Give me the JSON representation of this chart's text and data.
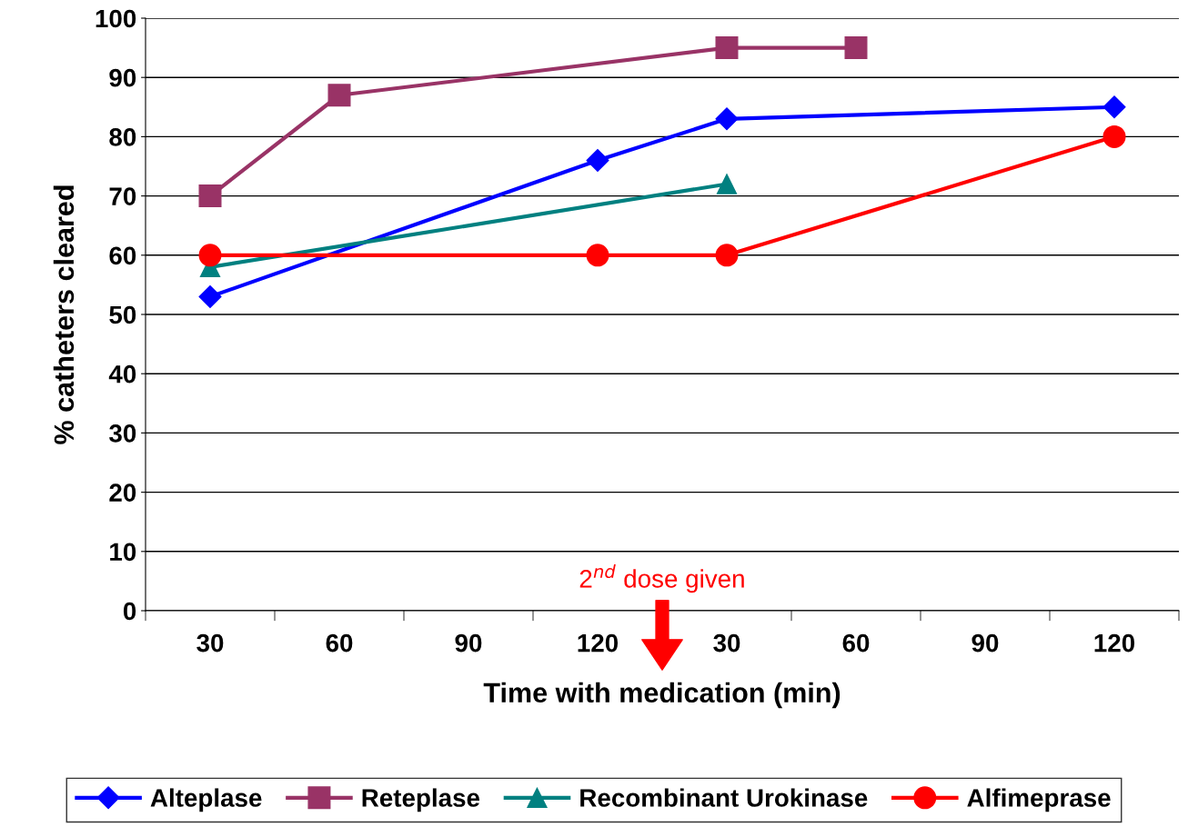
{
  "chart_data": {
    "type": "line",
    "xlabel": "Time with medication (min)",
    "ylabel": "% catheters cleared",
    "categories": [
      "30",
      "60",
      "90",
      "120",
      "30",
      "60",
      "90",
      "120"
    ],
    "series": [
      {
        "name": "Alteplase",
        "color": "#0000ff",
        "marker": "diamond",
        "values": [
          53,
          null,
          null,
          76,
          83,
          null,
          null,
          85
        ]
      },
      {
        "name": "Reteplase",
        "color": "#993366",
        "marker": "square",
        "values": [
          70,
          87,
          null,
          null,
          95,
          95,
          null,
          null
        ]
      },
      {
        "name": "Recombinant Urokinase",
        "color": "#008080",
        "marker": "triangle",
        "values": [
          58,
          null,
          null,
          null,
          72,
          null,
          null,
          null
        ]
      },
      {
        "name": "Alfimeprase",
        "color": "#ff0000",
        "marker": "circle",
        "values": [
          60,
          null,
          null,
          60,
          60,
          null,
          null,
          80
        ]
      }
    ],
    "ylim": [
      0,
      100
    ],
    "yticks": [
      0,
      10,
      20,
      30,
      40,
      50,
      60,
      70,
      80,
      90,
      100
    ],
    "grid": "y",
    "legend": "bottom",
    "annotations": [
      "2$^{nd}$ dose given"
    ]
  }
}
